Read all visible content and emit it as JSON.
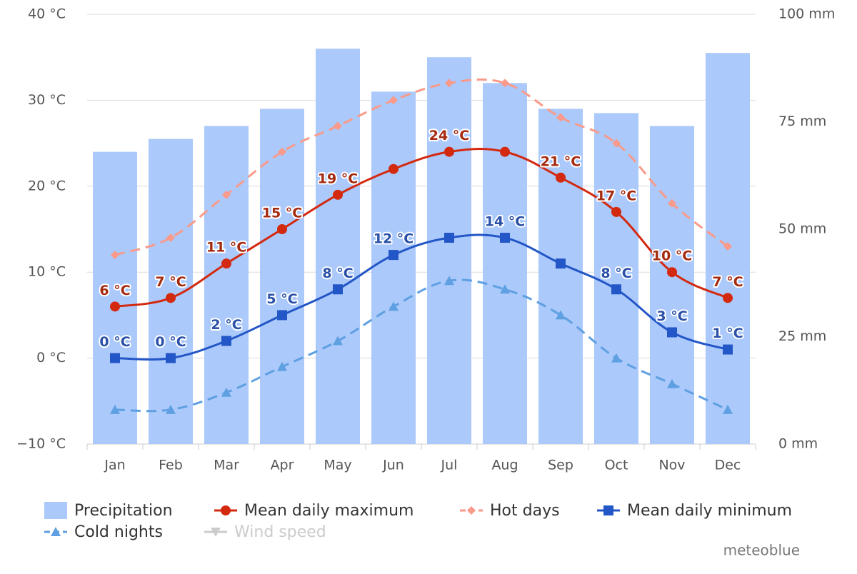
{
  "chart_data": {
    "type": "combo",
    "categories": [
      "Jan",
      "Feb",
      "Mar",
      "Apr",
      "May",
      "Jun",
      "Jul",
      "Aug",
      "Sep",
      "Oct",
      "Nov",
      "Dec"
    ],
    "ylim": [
      -10,
      40
    ],
    "yticks": [
      {
        "value": -10,
        "label": "−10 °C"
      },
      {
        "value": 0,
        "label": "0 °C"
      },
      {
        "value": 10,
        "label": "10 °C"
      },
      {
        "value": 20,
        "label": "20 °C"
      },
      {
        "value": 30,
        "label": "30 °C"
      },
      {
        "value": 40,
        "label": "40 °C"
      }
    ],
    "y2lim": [
      0,
      100
    ],
    "y2ticks": [
      {
        "value": 0,
        "label": "0 mm"
      },
      {
        "value": 25,
        "label": "25 mm"
      },
      {
        "value": 50,
        "label": "50 mm"
      },
      {
        "value": 75,
        "label": "75 mm"
      },
      {
        "value": 100,
        "label": "100 mm"
      }
    ],
    "grid": true,
    "series": [
      {
        "name": "Precipitation",
        "type": "column",
        "axis": "y2",
        "color": "#abc9fb",
        "values": [
          68,
          71,
          74,
          78,
          92,
          82,
          90,
          84,
          78,
          77,
          74,
          91
        ]
      },
      {
        "name": "Mean daily maximum",
        "type": "spline",
        "color": "#d3290f",
        "label_color": "#a42a10",
        "symbol": "circle",
        "dash": false,
        "values": [
          6,
          7,
          11,
          15,
          19,
          22,
          24,
          24,
          21,
          17,
          10,
          7
        ],
        "value_labels": [
          "6 °C",
          "7 °C",
          "11 °C",
          "15 °C",
          "19 °C",
          null,
          "24 °C",
          null,
          "21 °C",
          "17 °C",
          "10 °C",
          "7 °C"
        ]
      },
      {
        "name": "Hot days",
        "type": "spline",
        "color": "#f99a8a",
        "symbol": "diamond",
        "dash": true,
        "values": [
          12,
          14,
          19,
          24,
          27,
          30,
          32,
          32,
          28,
          25,
          18,
          13
        ]
      },
      {
        "name": "Mean daily minimum",
        "type": "spline",
        "color": "#2356c6",
        "label_color": "#2a50a8",
        "symbol": "square",
        "dash": false,
        "values": [
          0,
          0,
          2,
          5,
          8,
          12,
          14,
          14,
          11,
          8,
          3,
          1
        ],
        "value_labels": [
          "0 °C",
          "0 °C",
          "2 °C",
          "5 °C",
          "8 °C",
          "12 °C",
          null,
          "14 °C",
          null,
          "8 °C",
          "3 °C",
          "1 °C"
        ]
      },
      {
        "name": "Cold nights",
        "type": "spline",
        "color": "#5fa0e2",
        "symbol": "triangle",
        "dash": true,
        "values": [
          -6,
          -6,
          -4,
          -1,
          2,
          6,
          9,
          8,
          5,
          0,
          -3,
          -6
        ]
      },
      {
        "name": "Wind speed",
        "type": "spline",
        "color": "#cccccc",
        "symbol": "triangle-down",
        "dash": false,
        "hidden": true,
        "values": [
          null,
          null,
          null,
          null,
          null,
          null,
          null,
          null,
          null,
          null,
          null,
          null
        ]
      }
    ],
    "credit": "meteoblue"
  }
}
